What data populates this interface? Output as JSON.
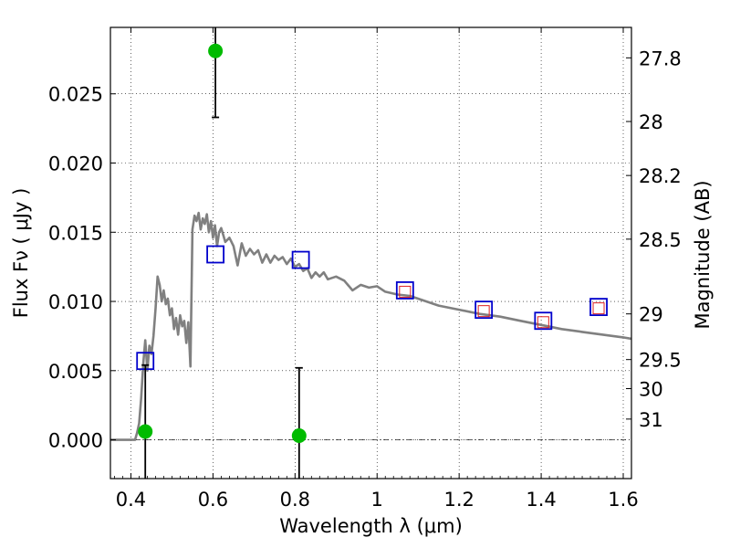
{
  "chart_data": {
    "type": "scatter",
    "xlabel": "Wavelength  λ (μm)",
    "ylabel": "Flux  Fν  ( μJy )",
    "ylabel2": "Magnitude (AB)",
    "xlim": [
      0.35,
      1.62
    ],
    "ylim": [
      -0.0028,
      0.0298
    ],
    "grid": true,
    "x_ticks": [
      0.4,
      0.6,
      0.8,
      1.0,
      1.2,
      1.4,
      1.6
    ],
    "x_tick_labels": [
      "0.4",
      "0.6",
      "0.8",
      "1",
      "1.2",
      "1.4",
      "1.6"
    ],
    "y_ticks": [
      0.0,
      0.005,
      0.01,
      0.015,
      0.02,
      0.025
    ],
    "y_tick_labels": [
      "0.000",
      "0.005",
      "0.010",
      "0.015",
      "0.020",
      "0.025"
    ],
    "magnitude_ticks": [
      {
        "label": "27.8",
        "flux": 0.0276
      },
      {
        "label": "28",
        "flux": 0.023
      },
      {
        "label": "28.2",
        "flux": 0.0191
      },
      {
        "label": "28.5",
        "flux": 0.0145
      },
      {
        "label": "29",
        "flux": 0.0091
      },
      {
        "label": "29.5",
        "flux": 0.0058
      },
      {
        "label": "30",
        "flux": 0.0037
      },
      {
        "label": "31",
        "flux": 0.0015
      }
    ],
    "series": [
      {
        "kind": "model-sed",
        "color": "#808080",
        "x": [
          0.35,
          0.41,
          0.415,
          0.42,
          0.425,
          0.43,
          0.435,
          0.44,
          0.445,
          0.45,
          0.455,
          0.46,
          0.465,
          0.47,
          0.475,
          0.48,
          0.485,
          0.49,
          0.495,
          0.5,
          0.505,
          0.51,
          0.515,
          0.52,
          0.525,
          0.53,
          0.535,
          0.54,
          0.545,
          0.55,
          0.555,
          0.56,
          0.565,
          0.57,
          0.575,
          0.58,
          0.585,
          0.59,
          0.595,
          0.6,
          0.605,
          0.61,
          0.615,
          0.62,
          0.63,
          0.64,
          0.65,
          0.66,
          0.67,
          0.68,
          0.69,
          0.7,
          0.71,
          0.72,
          0.73,
          0.74,
          0.75,
          0.76,
          0.77,
          0.78,
          0.79,
          0.8,
          0.81,
          0.82,
          0.83,
          0.84,
          0.85,
          0.86,
          0.87,
          0.88,
          0.9,
          0.92,
          0.94,
          0.96,
          0.98,
          1.0,
          1.02,
          1.05,
          1.08,
          1.1,
          1.15,
          1.2,
          1.25,
          1.3,
          1.35,
          1.4,
          1.45,
          1.5,
          1.55,
          1.6,
          1.62
        ],
        "y": [
          0.0,
          0.0,
          0.0005,
          0.0012,
          0.003,
          0.0055,
          0.0072,
          0.005,
          0.0068,
          0.0062,
          0.0075,
          0.0095,
          0.0118,
          0.0112,
          0.01,
          0.0108,
          0.0098,
          0.0102,
          0.009,
          0.0095,
          0.008,
          0.0088,
          0.0076,
          0.009,
          0.0082,
          0.0086,
          0.007,
          0.0085,
          0.0053,
          0.0152,
          0.0162,
          0.0158,
          0.0164,
          0.0152,
          0.016,
          0.0156,
          0.0163,
          0.015,
          0.0158,
          0.0146,
          0.0155,
          0.014,
          0.015,
          0.0153,
          0.0143,
          0.0146,
          0.014,
          0.0126,
          0.0142,
          0.0133,
          0.0138,
          0.0134,
          0.0137,
          0.0128,
          0.0134,
          0.0128,
          0.0133,
          0.013,
          0.0132,
          0.0127,
          0.0131,
          0.0125,
          0.0127,
          0.0122,
          0.0124,
          0.0117,
          0.0121,
          0.0118,
          0.0121,
          0.0116,
          0.0118,
          0.0115,
          0.0108,
          0.0112,
          0.011,
          0.0111,
          0.0107,
          0.0105,
          0.0104,
          0.0102,
          0.0097,
          0.0094,
          0.0091,
          0.0089,
          0.0086,
          0.0083,
          0.008,
          0.0078,
          0.0076,
          0.0074,
          0.0073
        ]
      },
      {
        "kind": "observed-photometry",
        "marker": "circle",
        "color": "#00bb00",
        "points": [
          {
            "x": 0.435,
            "y": 0.0006,
            "err_low": 0.0068,
            "err_high": 0.0048
          },
          {
            "x": 0.606,
            "y": 0.0281,
            "err_low": 0.0048,
            "err_high": 0.003
          },
          {
            "x": 0.81,
            "y": 0.0003,
            "err_low": 0.005,
            "err_high": 0.0049
          }
        ]
      },
      {
        "kind": "model-photometry",
        "marker": "open-square",
        "color": "#0000cc",
        "points": [
          {
            "x": 0.435,
            "y": 0.0057
          },
          {
            "x": 0.606,
            "y": 0.0134
          },
          {
            "x": 0.814,
            "y": 0.013
          },
          {
            "x": 1.068,
            "y": 0.0108
          },
          {
            "x": 1.26,
            "y": 0.0094
          },
          {
            "x": 1.405,
            "y": 0.0086
          },
          {
            "x": 1.54,
            "y": 0.0096
          }
        ]
      },
      {
        "kind": "synthetic-photometry",
        "marker": "open-square-small",
        "color": "#dd2222",
        "points": [
          {
            "x": 1.068,
            "y": 0.0107
          },
          {
            "x": 1.26,
            "y": 0.0093
          },
          {
            "x": 1.405,
            "y": 0.0085
          },
          {
            "x": 1.54,
            "y": 0.0095
          }
        ]
      }
    ]
  }
}
